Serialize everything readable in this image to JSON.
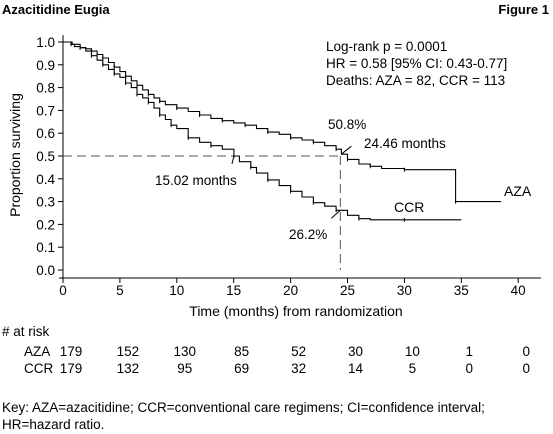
{
  "header": {
    "left": "Azacitidine Eugia",
    "right": "Figure 1"
  },
  "chart_data": {
    "type": "line",
    "subtype": "kaplan-meier",
    "xlabel": "Time (months) from randomization",
    "ylabel": "Proportion surviving",
    "xlim": [
      0,
      42
    ],
    "ylim": [
      0,
      1.0
    ],
    "x_ticks": [
      "0",
      "5",
      "10",
      "15",
      "20",
      "25",
      "30",
      "35",
      "40"
    ],
    "y_ticks": [
      "0.0",
      "0.1",
      "0.2",
      "0.3",
      "0.4",
      "0.5",
      "0.6",
      "0.7",
      "0.8",
      "0.9",
      "1.0"
    ],
    "grid": false,
    "series": [
      {
        "name": "AZA",
        "color": "#000000",
        "style": "solid",
        "points": [
          [
            0,
            1.0
          ],
          [
            0.5,
            1.0
          ],
          [
            0.7,
            0.99
          ],
          [
            1.0,
            0.98
          ],
          [
            1.5,
            0.975
          ],
          [
            2.0,
            0.97
          ],
          [
            2.5,
            0.96
          ],
          [
            3.0,
            0.945
          ],
          [
            3.5,
            0.93
          ],
          [
            4.0,
            0.91
          ],
          [
            4.5,
            0.89
          ],
          [
            5.0,
            0.87
          ],
          [
            5.5,
            0.85
          ],
          [
            6.0,
            0.83
          ],
          [
            6.5,
            0.81
          ],
          [
            7.0,
            0.79
          ],
          [
            7.5,
            0.77
          ],
          [
            8.0,
            0.755
          ],
          [
            8.5,
            0.74
          ],
          [
            9.0,
            0.725
          ],
          [
            10.0,
            0.71
          ],
          [
            11.0,
            0.695
          ],
          [
            12.0,
            0.68
          ],
          [
            13.0,
            0.665
          ],
          [
            14.0,
            0.655
          ],
          [
            15.0,
            0.645
          ],
          [
            16.0,
            0.635
          ],
          [
            17.0,
            0.62
          ],
          [
            18.0,
            0.605
          ],
          [
            19.0,
            0.595
          ],
          [
            20.0,
            0.58
          ],
          [
            21.0,
            0.57
          ],
          [
            22.0,
            0.56
          ],
          [
            23.0,
            0.545
          ],
          [
            24.0,
            0.53
          ],
          [
            24.46,
            0.508
          ],
          [
            25.0,
            0.485
          ],
          [
            26.0,
            0.465
          ],
          [
            27.0,
            0.455
          ],
          [
            28.0,
            0.445
          ],
          [
            30.0,
            0.44
          ],
          [
            34.5,
            0.44
          ],
          [
            34.5,
            0.3
          ],
          [
            38.5,
            0.3
          ]
        ]
      },
      {
        "name": "CCR",
        "color": "#000000",
        "style": "solid",
        "points": [
          [
            0,
            1.0
          ],
          [
            0.8,
            0.99
          ],
          [
            1.5,
            0.975
          ],
          [
            2.0,
            0.96
          ],
          [
            2.5,
            0.94
          ],
          [
            3.0,
            0.92
          ],
          [
            3.5,
            0.9
          ],
          [
            4.0,
            0.88
          ],
          [
            4.5,
            0.86
          ],
          [
            5.0,
            0.845
          ],
          [
            5.5,
            0.82
          ],
          [
            6.0,
            0.8
          ],
          [
            6.5,
            0.77
          ],
          [
            7.0,
            0.755
          ],
          [
            7.5,
            0.735
          ],
          [
            8.0,
            0.71
          ],
          [
            8.5,
            0.68
          ],
          [
            9.0,
            0.66
          ],
          [
            9.5,
            0.635
          ],
          [
            10.0,
            0.62
          ],
          [
            11.0,
            0.58
          ],
          [
            12.0,
            0.56
          ],
          [
            13.0,
            0.545
          ],
          [
            14.0,
            0.53
          ],
          [
            15.02,
            0.5
          ],
          [
            15.5,
            0.475
          ],
          [
            16.5,
            0.45
          ],
          [
            17.0,
            0.425
          ],
          [
            18.0,
            0.395
          ],
          [
            19.0,
            0.37
          ],
          [
            20.0,
            0.345
          ],
          [
            21.0,
            0.32
          ],
          [
            22.0,
            0.295
          ],
          [
            23.0,
            0.28
          ],
          [
            24.0,
            0.262
          ],
          [
            25.0,
            0.24
          ],
          [
            26.0,
            0.225
          ],
          [
            27.0,
            0.22
          ],
          [
            30.0,
            0.22
          ],
          [
            35.0,
            0.22
          ]
        ]
      }
    ],
    "reference_lines": {
      "median_y": 0.5,
      "aza_median_x": 24.46,
      "ccr_median_x": 15.02,
      "aza_median_survival_y": 0.508,
      "ccr_survival_at_aza_median": 0.262
    },
    "stats": [
      "Log-rank p = 0.0001",
      "HR = 0.58 [95% CI: 0.43-0.77]",
      "Deaths: AZA = 82, CCR = 113"
    ],
    "annotations": {
      "aza_pct": "50.8%",
      "aza_months": "24.46 months",
      "ccr_months": "15.02 months",
      "ccr_pct": "26.2%",
      "aza_label": "AZA",
      "ccr_label": "CCR"
    }
  },
  "at_risk": {
    "title": "# at risk",
    "rows": [
      {
        "label": "AZA",
        "values": [
          "179",
          "152",
          "130",
          "85",
          "52",
          "30",
          "10",
          "1",
          "0"
        ]
      },
      {
        "label": "CCR",
        "values": [
          "179",
          "132",
          "95",
          "69",
          "32",
          "14",
          "5",
          "0",
          "0"
        ]
      }
    ]
  },
  "key": {
    "line1": "Key: AZA=azacitidine; CCR=conventional care regimens; CI=confidence interval;",
    "line2": "HR=hazard ratio."
  }
}
